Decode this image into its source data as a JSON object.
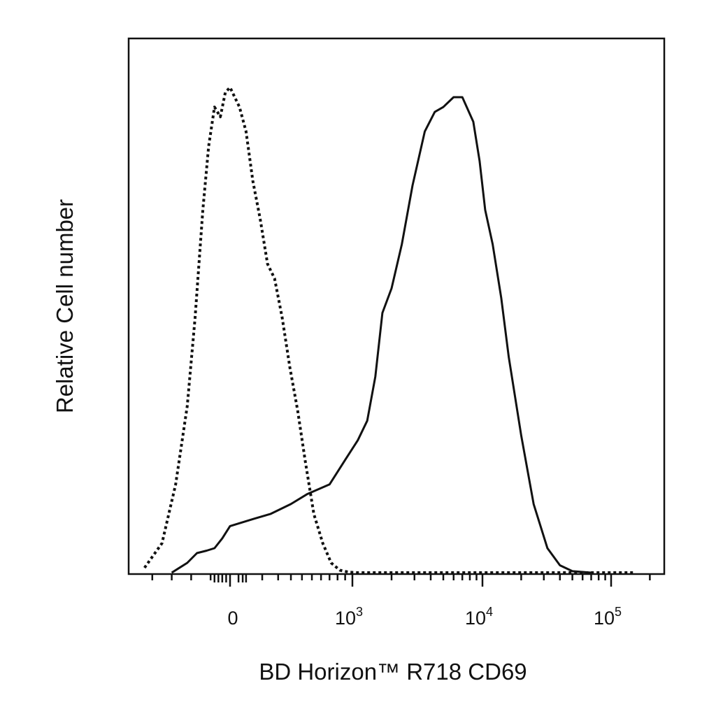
{
  "chart_data": {
    "type": "line",
    "title": "",
    "xlabel": "BD Horizon™ R718 CD69",
    "ylabel": "Relative Cell number",
    "x_scale": "biexponential",
    "xlim": [
      -250,
      200000
    ],
    "ylim": [
      0,
      100
    ],
    "grid": false,
    "legend": "none",
    "x_tick_labels": [
      {
        "value": 0,
        "base": "0",
        "exp": ""
      },
      {
        "value": 1000,
        "base": "10",
        "exp": "3"
      },
      {
        "value": 10000,
        "base": "10",
        "exp": "4"
      },
      {
        "value": 100000,
        "base": "10",
        "exp": "5"
      }
    ],
    "series": [
      {
        "style": "dotted",
        "color": "#111111",
        "x": [
          -220,
          -175,
          -140,
          -110,
          -90,
          -70,
          -55,
          -40,
          -25,
          -12,
          0,
          12,
          30,
          55,
          90,
          130,
          175,
          230,
          290,
          360,
          430,
          520,
          620,
          720,
          830,
          950,
          1100,
          1500,
          3000,
          10000,
          50000,
          150000
        ],
        "y": [
          1,
          6,
          18,
          34,
          52,
          74,
          87,
          95,
          93,
          98,
          99,
          95,
          90,
          80,
          72,
          63,
          60,
          52,
          42,
          33,
          23,
          12,
          6,
          2,
          0.5,
          0.1,
          0,
          0,
          0,
          0,
          0,
          0
        ]
      },
      {
        "style": "solid",
        "color": "#111111",
        "x": [
          -150,
          -110,
          -85,
          -60,
          -40,
          -20,
          0,
          60,
          150,
          300,
          450,
          700,
          900,
          1100,
          1300,
          1500,
          1700,
          2000,
          2400,
          2900,
          3600,
          4300,
          5000,
          6000,
          7000,
          8500,
          9500,
          10500,
          12000,
          14000,
          16000,
          20000,
          25000,
          32000,
          40000,
          50000,
          70000
        ],
        "y": [
          0,
          2,
          4,
          4.5,
          5,
          7,
          9.5,
          11,
          12,
          14,
          16,
          18,
          23,
          27,
          31,
          40,
          53,
          58,
          67,
          79,
          90,
          94,
          95,
          97,
          97,
          92,
          84,
          74,
          67,
          56,
          44,
          28,
          14,
          5,
          1.5,
          0.3,
          0
        ]
      }
    ]
  }
}
